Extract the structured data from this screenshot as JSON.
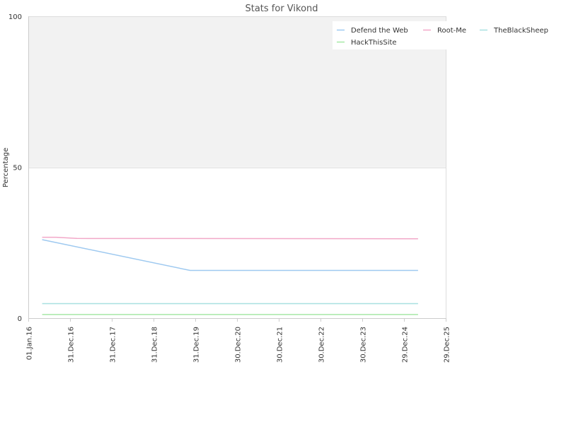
{
  "chart_data": {
    "type": "line",
    "title": "Stats for Vikond",
    "xlabel": "",
    "ylabel": "Percentage",
    "ylim": [
      0,
      100
    ],
    "yticks": [
      0,
      50,
      100
    ],
    "xlim": [
      "2016-01-01",
      "2025-12-29"
    ],
    "xticks": [
      {
        "date": "2016-01-01",
        "label": "01.Jan.16"
      },
      {
        "date": "2016-12-31",
        "label": "31.Dec.16"
      },
      {
        "date": "2017-12-31",
        "label": "31.Dec.17"
      },
      {
        "date": "2018-12-31",
        "label": "31.Dec.18"
      },
      {
        "date": "2019-12-31",
        "label": "31.Dec.19"
      },
      {
        "date": "2020-12-30",
        "label": "30.Dec.20"
      },
      {
        "date": "2021-12-30",
        "label": "30.Dec.21"
      },
      {
        "date": "2022-12-30",
        "label": "30.Dec.22"
      },
      {
        "date": "2023-12-30",
        "label": "30.Dec.23"
      },
      {
        "date": "2024-12-29",
        "label": "29.Dec.24"
      },
      {
        "date": "2025-12-29",
        "label": "29.Dec.25"
      }
    ],
    "background_bands": [
      {
        "from": 50,
        "to": 100,
        "color": "#f2f2f2"
      }
    ],
    "legend_position": "top-right",
    "grid": true,
    "series": [
      {
        "name": "Defend the Web",
        "color": "#9ec9f0",
        "points": [
          {
            "x": "2016-05-01",
            "y": 26.0
          },
          {
            "x": "2019-11-15",
            "y": 15.8
          },
          {
            "x": "2025-05-01",
            "y": 15.8
          }
        ]
      },
      {
        "name": "Root-Me",
        "color": "#f2a8c8",
        "points": [
          {
            "x": "2016-05-01",
            "y": 26.8
          },
          {
            "x": "2016-09-01",
            "y": 26.8
          },
          {
            "x": "2017-03-01",
            "y": 26.4
          },
          {
            "x": "2025-05-01",
            "y": 26.3
          }
        ]
      },
      {
        "name": "TheBlackSheep",
        "color": "#a8e0e0",
        "points": [
          {
            "x": "2016-05-01",
            "y": 4.8
          },
          {
            "x": "2025-05-01",
            "y": 4.8
          }
        ]
      },
      {
        "name": "HackThisSite",
        "color": "#a6e8a6",
        "points": [
          {
            "x": "2016-05-01",
            "y": 1.2
          },
          {
            "x": "2025-05-01",
            "y": 1.2
          }
        ]
      }
    ]
  },
  "style": {
    "plot_band_color": "#f2f2f2",
    "grid_color": "#dddddd",
    "axis_color": "#cccccc",
    "text_color": "#333333",
    "title_color": "#555555"
  }
}
